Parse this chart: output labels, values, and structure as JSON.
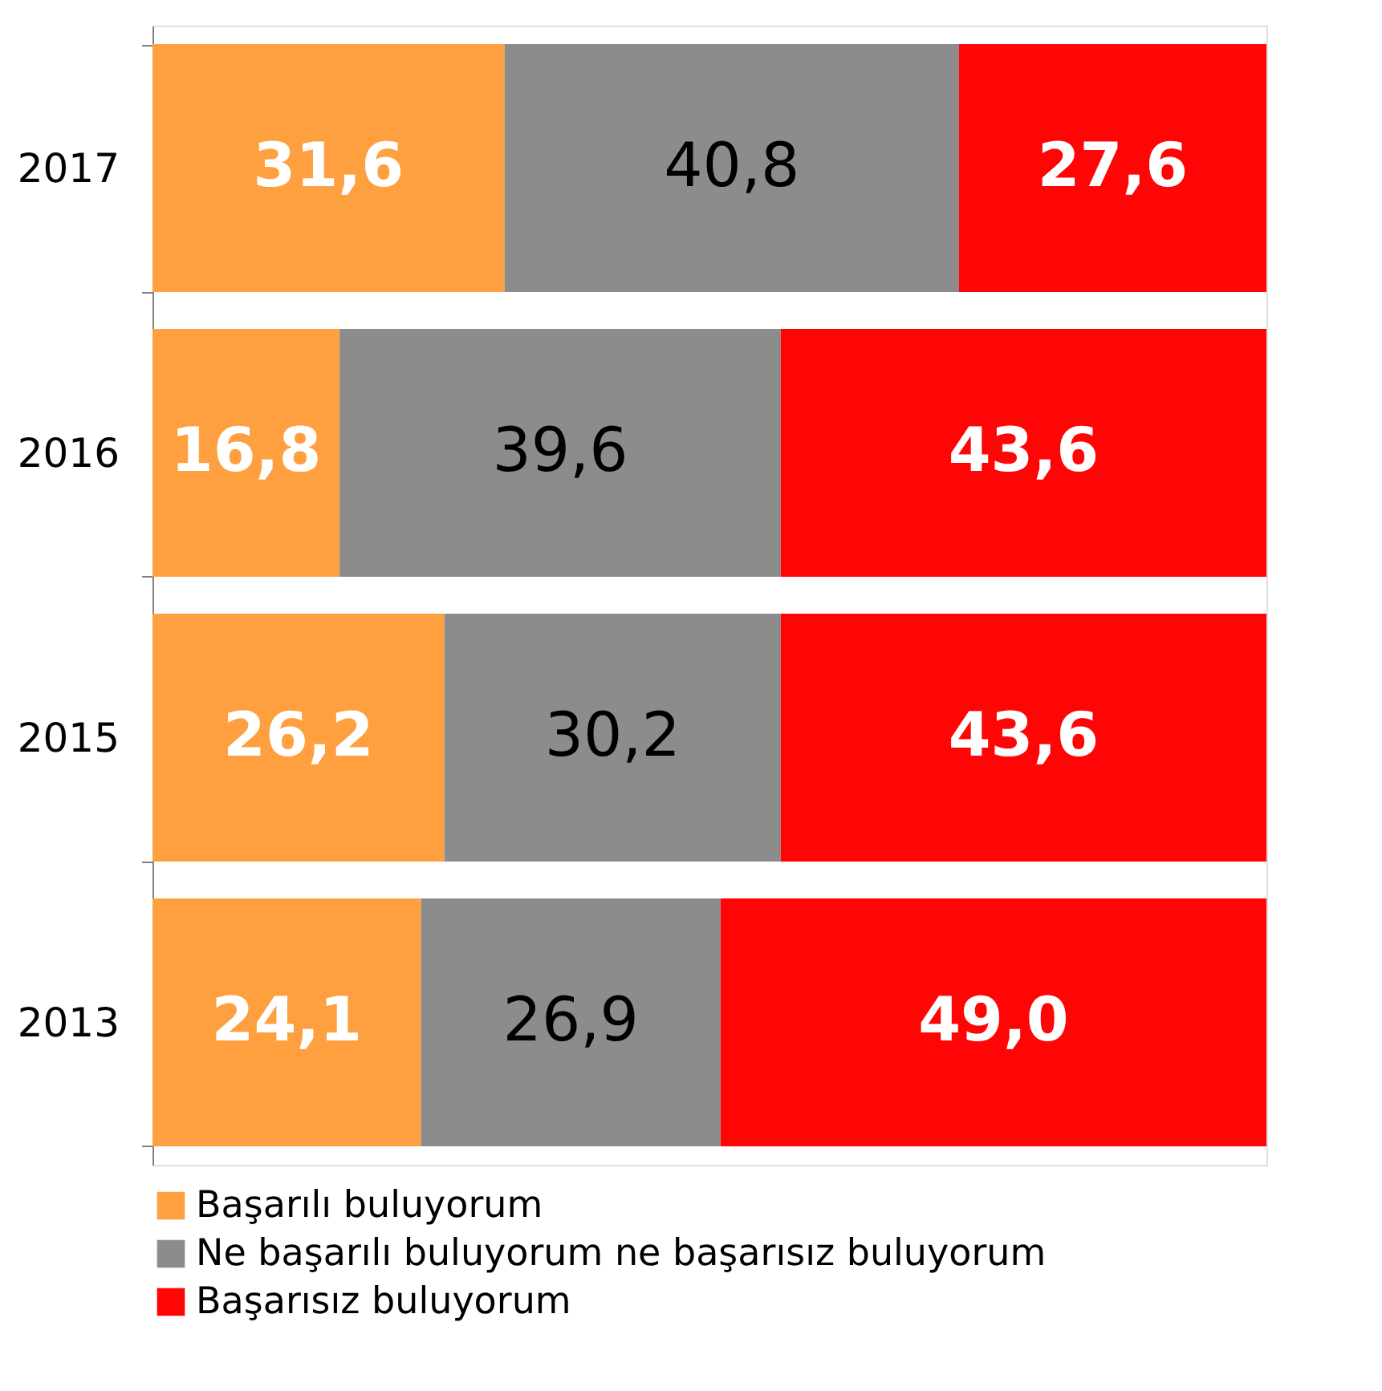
{
  "chart_data": {
    "type": "bar",
    "orientation": "horizontal",
    "stacked": true,
    "legend": "bottom",
    "grid": false,
    "tick_labels": "y",
    "categories": [
      "2017",
      "2016",
      "2015",
      "2013"
    ],
    "series": [
      {
        "name": "Başarılı buluyorum",
        "color": "#ffa040",
        "values": [
          31.6,
          16.8,
          26.2,
          24.1
        ],
        "value_labels": [
          "31,6",
          "16,8",
          "26,2",
          "24,1"
        ]
      },
      {
        "name": "Ne başarılı buluyorum ne başarısız buluyorum",
        "color": "#8c8c8c",
        "values": [
          40.8,
          39.6,
          30.2,
          26.9
        ],
        "value_labels": [
          "40,8",
          "39,6",
          "30,2",
          "26,9"
        ]
      },
      {
        "name": "Başarısız buluyorum",
        "color": "#ff0505",
        "values": [
          27.6,
          43.6,
          43.6,
          49.0
        ],
        "value_labels": [
          "27,6",
          "43,6",
          "43,6",
          "49,0"
        ]
      }
    ]
  }
}
